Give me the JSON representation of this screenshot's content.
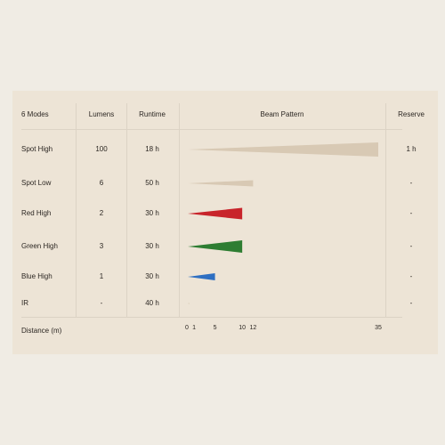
{
  "chart_data": {
    "type": "table",
    "columns": [
      "6 Modes",
      "Lumens",
      "Runtime",
      "Beam Pattern",
      "Reserve"
    ],
    "rows": [
      {
        "mode": "Spot High",
        "lumens": "100",
        "runtime": "18 h",
        "beam_distance": 35,
        "reserve": "1 h",
        "color": "#d8c9b4"
      },
      {
        "mode": "Spot Low",
        "lumens": "6",
        "runtime": "50 h",
        "beam_distance": 12,
        "reserve": "-",
        "color": "#d8c9b4"
      },
      {
        "mode": "Red High",
        "lumens": "2",
        "runtime": "30 h",
        "beam_distance": 10,
        "reserve": "-",
        "color": "#c8242b"
      },
      {
        "mode": "Green High",
        "lumens": "3",
        "runtime": "30 h",
        "beam_distance": 10,
        "reserve": "-",
        "color": "#2e7d32"
      },
      {
        "mode": "Blue High",
        "lumens": "1",
        "runtime": "30 h",
        "beam_distance": 5,
        "reserve": "-",
        "color": "#2e6fc2"
      },
      {
        "mode": "IR",
        "lumens": "-",
        "runtime": "40 h",
        "beam_distance": 0.3,
        "reserve": "-",
        "color": "#d8c9b4"
      }
    ],
    "distance_label": "Distance (m)",
    "ticks": [
      "0",
      "1",
      "5",
      "10",
      "12",
      "35"
    ],
    "tick_values": [
      0,
      1,
      5,
      10,
      12,
      35
    ],
    "xlim": [
      0,
      35
    ]
  }
}
